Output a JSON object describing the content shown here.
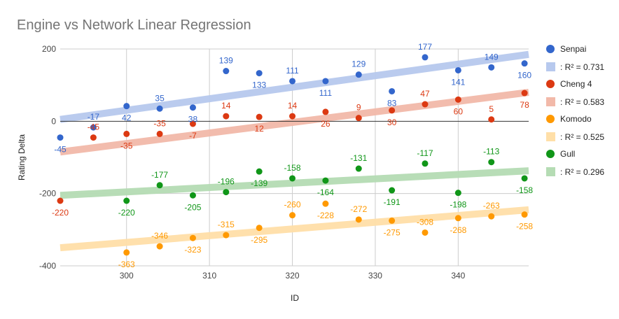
{
  "chart_data": {
    "type": "scatter",
    "title": "Engine vs Network Linear Regression",
    "xlabel": "ID",
    "ylabel": "Rating Delta",
    "xlim": [
      292,
      348.5
    ],
    "ylim": [
      -400,
      200
    ],
    "x_ticks": [
      "300",
      "310",
      "320",
      "330",
      "340"
    ],
    "y_ticks": [
      "200",
      "0",
      "-200",
      "-400"
    ],
    "grid": true,
    "legend_position": "right",
    "x": [
      292,
      296,
      300,
      304,
      308,
      312,
      316,
      320,
      324,
      328,
      332,
      336,
      340,
      344,
      348
    ],
    "series": [
      {
        "name": "Senpai",
        "color": "#3366cc",
        "trend_color": "#b7c9ee",
        "values": [
          -45,
          -17,
          42,
          35,
          38,
          139,
          133,
          111,
          111,
          129,
          83,
          177,
          141,
          149,
          160
        ],
        "labels": [
          "-45",
          "-17",
          "42",
          "35",
          "38",
          "139",
          "133",
          "111",
          "111",
          "129",
          "83",
          "177",
          "141",
          "149",
          "160"
        ],
        "trend": {
          "label": ": R² = 0.731",
          "start": 5,
          "end": 185
        }
      },
      {
        "name": "Cheng 4",
        "color": "#dc3912",
        "trend_color": "#f2b9a9",
        "values": [
          -220,
          -45,
          -35,
          -35,
          -7,
          14,
          12,
          14,
          26,
          9,
          30,
          47,
          60,
          5,
          78
        ],
        "labels": [
          "-220",
          "-45",
          "-35",
          "-35",
          "-7",
          "14",
          "12",
          "14",
          "26",
          "9",
          "30",
          "47",
          "60",
          "5",
          "78"
        ],
        "trend": {
          "label": ": R² = 0.583",
          "start": -85,
          "end": 80
        }
      },
      {
        "name": "Komodo",
        "color": "#ff9900",
        "trend_color": "#ffdfa8",
        "values": [
          null,
          null,
          -363,
          -346,
          -323,
          -315,
          -295,
          -260,
          -228,
          -272,
          -275,
          -308,
          -268,
          -263,
          -258
        ],
        "labels": [
          "",
          "",
          "-363",
          "-346",
          "-323",
          "-315",
          "-295",
          "-260",
          "-228",
          "-272",
          "-275",
          "-308",
          "-268",
          "-263",
          "-258"
        ],
        "trend": {
          "label": ": R² = 0.525",
          "start": -350,
          "end": -245
        }
      },
      {
        "name": "Gull",
        "color": "#109618",
        "trend_color": "#b5dcb4",
        "values": [
          null,
          null,
          -220,
          -177,
          -205,
          -196,
          -139,
          -158,
          -164,
          -131,
          -191,
          -117,
          -198,
          -113,
          -158
        ],
        "labels": [
          "",
          "",
          "-220",
          "-177",
          "-205",
          "-196",
          "-139",
          "-158",
          "-164",
          "-131",
          "-191",
          "-117",
          "-198",
          "-113",
          "-158"
        ],
        "trend": {
          "label": ": R² = 0.296",
          "start": -205,
          "end": -137
        }
      }
    ]
  }
}
